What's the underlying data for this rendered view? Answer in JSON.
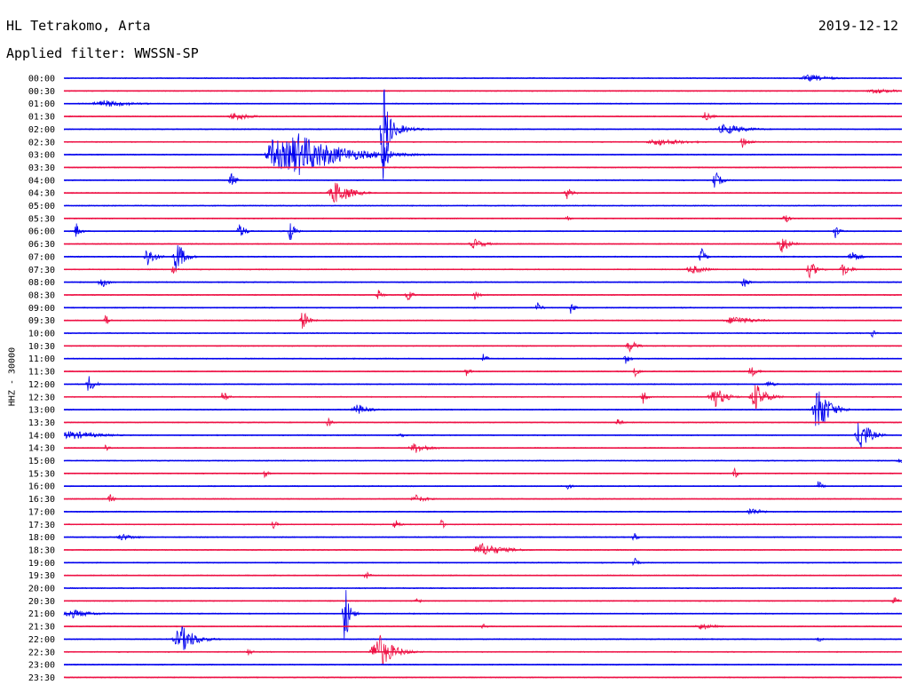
{
  "header": {
    "station": "HL Tetrakomo, Arta",
    "date": "2019-12-12",
    "filter": "Applied filter: WWSSN-SP"
  },
  "chart_data": {
    "type": "line",
    "title": "HL Tetrakomo, Arta",
    "ylabel": "HHZ - 30000",
    "colors": [
      "#0000ee",
      "#ee1144"
    ],
    "ticks": [
      "00:00",
      "00:30",
      "01:00",
      "01:30",
      "02:00",
      "02:30",
      "03:00",
      "03:30",
      "04:00",
      "04:30",
      "05:00",
      "05:30",
      "06:00",
      "06:30",
      "07:00",
      "07:30",
      "08:00",
      "08:30",
      "09:00",
      "09:30",
      "10:00",
      "10:30",
      "11:00",
      "11:30",
      "12:00",
      "12:30",
      "13:00",
      "13:30",
      "14:00",
      "14:30",
      "15:00",
      "15:30",
      "16:00",
      "16:30",
      "17:00",
      "17:30",
      "18:00",
      "18:30",
      "19:00",
      "19:30",
      "20:00",
      "20:30",
      "21:00",
      "21:30",
      "22:00",
      "22:30",
      "23:00",
      "23:30"
    ],
    "events": [
      {
        "row": 0,
        "x": 0.89,
        "amp": 4,
        "width": 0.03
      },
      {
        "row": 1,
        "x": 0.97,
        "amp": 3,
        "width": 0.03
      },
      {
        "row": 2,
        "x": 0.05,
        "amp": 4,
        "width": 0.04
      },
      {
        "row": 3,
        "x": 0.205,
        "amp": 5,
        "width": 0.02
      },
      {
        "row": 3,
        "x": 0.765,
        "amp": 5,
        "width": 0.01
      },
      {
        "row": 4,
        "x": 0.381,
        "amp": 62,
        "width": 0.008
      },
      {
        "row": 4,
        "x": 0.79,
        "amp": 6,
        "width": 0.03
      },
      {
        "row": 5,
        "x": 0.71,
        "amp": 4,
        "width": 0.04
      },
      {
        "row": 5,
        "x": 0.81,
        "amp": 7,
        "width": 0.01
      },
      {
        "row": 6,
        "x": 0.28,
        "amp": 24,
        "width": 0.06
      },
      {
        "row": 6,
        "x": 0.381,
        "amp": 30,
        "width": 0.006
      },
      {
        "row": 8,
        "x": 0.2,
        "amp": 8,
        "width": 0.008
      },
      {
        "row": 8,
        "x": 0.776,
        "amp": 12,
        "width": 0.008
      },
      {
        "row": 9,
        "x": 0.325,
        "amp": 14,
        "width": 0.02
      },
      {
        "row": 9,
        "x": 0.6,
        "amp": 7,
        "width": 0.008
      },
      {
        "row": 11,
        "x": 0.6,
        "amp": 4,
        "width": 0.005
      },
      {
        "row": 11,
        "x": 0.86,
        "amp": 7,
        "width": 0.006
      },
      {
        "row": 12,
        "x": 0.015,
        "amp": 9,
        "width": 0.006
      },
      {
        "row": 12,
        "x": 0.21,
        "amp": 9,
        "width": 0.008
      },
      {
        "row": 12,
        "x": 0.27,
        "amp": 13,
        "width": 0.006
      },
      {
        "row": 12,
        "x": 0.92,
        "amp": 8,
        "width": 0.006
      },
      {
        "row": 13,
        "x": 0.49,
        "amp": 6,
        "width": 0.015
      },
      {
        "row": 13,
        "x": 0.855,
        "amp": 13,
        "width": 0.01
      },
      {
        "row": 14,
        "x": 0.1,
        "amp": 13,
        "width": 0.01
      },
      {
        "row": 14,
        "x": 0.135,
        "amp": 20,
        "width": 0.01
      },
      {
        "row": 14,
        "x": 0.76,
        "amp": 11,
        "width": 0.006
      },
      {
        "row": 14,
        "x": 0.94,
        "amp": 8,
        "width": 0.01
      },
      {
        "row": 15,
        "x": 0.13,
        "amp": 6,
        "width": 0.005
      },
      {
        "row": 15,
        "x": 0.75,
        "amp": 5,
        "width": 0.02
      },
      {
        "row": 15,
        "x": 0.89,
        "amp": 10,
        "width": 0.01
      },
      {
        "row": 15,
        "x": 0.93,
        "amp": 8,
        "width": 0.01
      },
      {
        "row": 16,
        "x": 0.045,
        "amp": 7,
        "width": 0.01
      },
      {
        "row": 16,
        "x": 0.81,
        "amp": 8,
        "width": 0.006
      },
      {
        "row": 17,
        "x": 0.375,
        "amp": 7,
        "width": 0.006
      },
      {
        "row": 17,
        "x": 0.41,
        "amp": 8,
        "width": 0.006
      },
      {
        "row": 17,
        "x": 0.49,
        "amp": 6,
        "width": 0.006
      },
      {
        "row": 18,
        "x": 0.565,
        "amp": 6,
        "width": 0.006
      },
      {
        "row": 18,
        "x": 0.605,
        "amp": 8,
        "width": 0.005
      },
      {
        "row": 19,
        "x": 0.05,
        "amp": 7,
        "width": 0.005
      },
      {
        "row": 19,
        "x": 0.285,
        "amp": 12,
        "width": 0.008
      },
      {
        "row": 19,
        "x": 0.8,
        "amp": 5,
        "width": 0.03
      },
      {
        "row": 20,
        "x": 0.964,
        "amp": 5,
        "width": 0.005
      },
      {
        "row": 21,
        "x": 0.675,
        "amp": 7,
        "width": 0.01
      },
      {
        "row": 22,
        "x": 0.5,
        "amp": 8,
        "width": 0.005
      },
      {
        "row": 22,
        "x": 0.67,
        "amp": 6,
        "width": 0.006
      },
      {
        "row": 23,
        "x": 0.48,
        "amp": 7,
        "width": 0.005
      },
      {
        "row": 23,
        "x": 0.68,
        "amp": 9,
        "width": 0.005
      },
      {
        "row": 23,
        "x": 0.82,
        "amp": 6,
        "width": 0.01
      },
      {
        "row": 24,
        "x": 0.03,
        "amp": 10,
        "width": 0.008
      },
      {
        "row": 24,
        "x": 0.84,
        "amp": 4,
        "width": 0.01
      },
      {
        "row": 25,
        "x": 0.19,
        "amp": 8,
        "width": 0.006
      },
      {
        "row": 25,
        "x": 0.69,
        "amp": 9,
        "width": 0.006
      },
      {
        "row": 25,
        "x": 0.775,
        "amp": 14,
        "width": 0.015
      },
      {
        "row": 25,
        "x": 0.825,
        "amp": 16,
        "width": 0.015
      },
      {
        "row": 26,
        "x": 0.35,
        "amp": 7,
        "width": 0.015
      },
      {
        "row": 26,
        "x": 0.9,
        "amp": 30,
        "width": 0.015
      },
      {
        "row": 27,
        "x": 0.315,
        "amp": 6,
        "width": 0.006
      },
      {
        "row": 27,
        "x": 0.66,
        "amp": 6,
        "width": 0.006
      },
      {
        "row": 28,
        "x": 0.01,
        "amp": 5,
        "width": 0.04
      },
      {
        "row": 28,
        "x": 0.4,
        "amp": 6,
        "width": 0.006
      },
      {
        "row": 28,
        "x": 0.95,
        "amp": 22,
        "width": 0.012
      },
      {
        "row": 29,
        "x": 0.05,
        "amp": 5,
        "width": 0.006
      },
      {
        "row": 29,
        "x": 0.42,
        "amp": 6,
        "width": 0.02
      },
      {
        "row": 30,
        "x": 0.995,
        "amp": 5,
        "width": 0.005
      },
      {
        "row": 31,
        "x": 0.24,
        "amp": 5,
        "width": 0.005
      },
      {
        "row": 31,
        "x": 0.8,
        "amp": 7,
        "width": 0.005
      },
      {
        "row": 32,
        "x": 0.6,
        "amp": 6,
        "width": 0.005
      },
      {
        "row": 32,
        "x": 0.9,
        "amp": 7,
        "width": 0.005
      },
      {
        "row": 33,
        "x": 0.055,
        "amp": 6,
        "width": 0.006
      },
      {
        "row": 33,
        "x": 0.42,
        "amp": 5,
        "width": 0.015
      },
      {
        "row": 34,
        "x": 0.82,
        "amp": 5,
        "width": 0.015
      },
      {
        "row": 35,
        "x": 0.25,
        "amp": 5,
        "width": 0.006
      },
      {
        "row": 35,
        "x": 0.395,
        "amp": 7,
        "width": 0.006
      },
      {
        "row": 35,
        "x": 0.45,
        "amp": 6,
        "width": 0.006
      },
      {
        "row": 36,
        "x": 0.07,
        "amp": 4,
        "width": 0.02
      },
      {
        "row": 36,
        "x": 0.68,
        "amp": 7,
        "width": 0.005
      },
      {
        "row": 37,
        "x": 0.5,
        "amp": 8,
        "width": 0.03
      },
      {
        "row": 38,
        "x": 0.68,
        "amp": 7,
        "width": 0.005
      },
      {
        "row": 39,
        "x": 0.36,
        "amp": 6,
        "width": 0.005
      },
      {
        "row": 41,
        "x": 0.42,
        "amp": 5,
        "width": 0.005
      },
      {
        "row": 41,
        "x": 0.99,
        "amp": 5,
        "width": 0.006
      },
      {
        "row": 42,
        "x": 0.01,
        "amp": 5,
        "width": 0.03
      },
      {
        "row": 42,
        "x": 0.335,
        "amp": 40,
        "width": 0.006
      },
      {
        "row": 43,
        "x": 0.5,
        "amp": 4,
        "width": 0.005
      },
      {
        "row": 43,
        "x": 0.76,
        "amp": 4,
        "width": 0.02
      },
      {
        "row": 44,
        "x": 0.14,
        "amp": 16,
        "width": 0.02
      },
      {
        "row": 44,
        "x": 0.9,
        "amp": 4,
        "width": 0.005
      },
      {
        "row": 45,
        "x": 0.22,
        "amp": 6,
        "width": 0.005
      },
      {
        "row": 45,
        "x": 0.375,
        "amp": 22,
        "width": 0.02
      }
    ],
    "big_events": [
      {
        "row": 6,
        "x0": 0.238,
        "x1": 0.37,
        "amp": 18
      },
      {
        "row": 4,
        "x0": 0.38,
        "x1": 0.41,
        "amp": 16
      }
    ]
  }
}
